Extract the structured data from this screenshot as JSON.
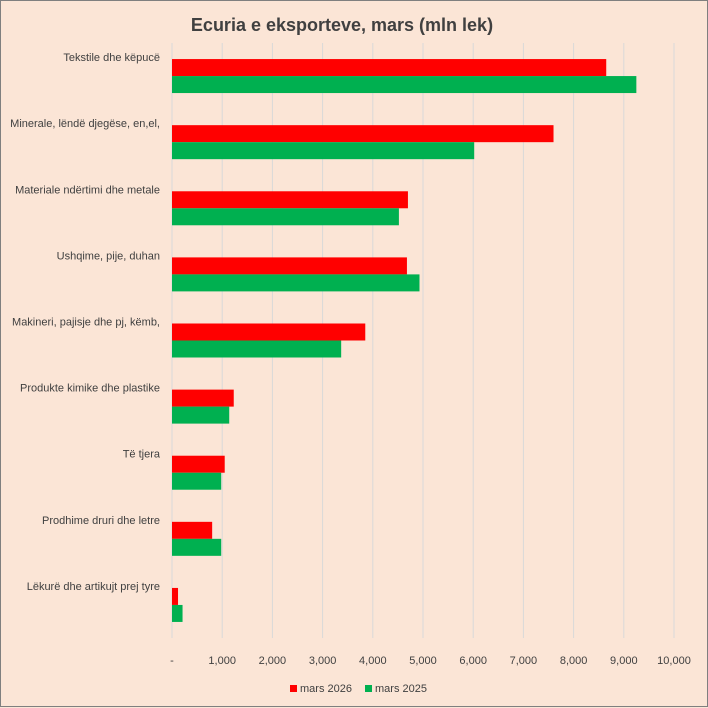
{
  "chart_data": {
    "type": "bar",
    "orientation": "horizontal",
    "title": "Ecuria e eksporteve, mars (mln lek)",
    "categories": [
      "Tekstile dhe këpucë",
      "Minerale, lëndë djegëse, en,el,",
      "Materiale ndërtimi dhe metale",
      "Ushqime, pije, duhan",
      "Makineri, pajisje dhe pj, këmb,",
      "Produkte kimike dhe plastike",
      "Të tjera",
      "Prodhime druri dhe letre",
      "Lëkurë dhe artikujt prej tyre"
    ],
    "series": [
      {
        "name": "mars 2026",
        "color": "#ff0000",
        "values": [
          8650,
          7600,
          4700,
          4680,
          3850,
          1230,
          1050,
          800,
          120
        ]
      },
      {
        "name": "mars 2025",
        "color": "#00b050",
        "values": [
          9250,
          6020,
          4520,
          4930,
          3370,
          1140,
          980,
          980,
          210
        ]
      }
    ],
    "xlim": [
      0,
      10000
    ],
    "xticks": [
      0,
      1000,
      2000,
      3000,
      4000,
      5000,
      6000,
      7000,
      8000,
      9000,
      10000
    ],
    "xtick_labels": [
      "-",
      "1,000",
      "2,000",
      "3,000",
      "4,000",
      "5,000",
      "6,000",
      "7,000",
      "8,000",
      "9,000",
      "10,000"
    ],
    "grid": "vertical",
    "legend_position": "bottom"
  }
}
